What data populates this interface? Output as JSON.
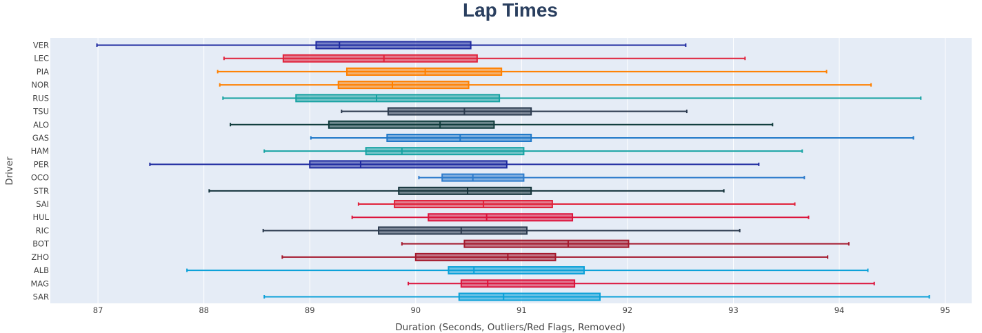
{
  "chart_data": {
    "type": "box",
    "title": "Lap Times",
    "xlabel": "Duration (Seconds, Outliers/Red Flags, Removed)",
    "ylabel": "Driver",
    "xlim": [
      86.55,
      95.25
    ],
    "x_ticks": [
      "87",
      "88",
      "89",
      "90",
      "91",
      "92",
      "93",
      "94",
      "95"
    ],
    "orientation": "horizontal",
    "grid": "vertical",
    "background": "#e5ecf6",
    "series": [
      {
        "name": "VER",
        "color": "#1e2aa0",
        "min": 86.99,
        "q1": 89.06,
        "median": 89.28,
        "q3": 90.52,
        "max": 92.55
      },
      {
        "name": "LEC",
        "color": "#e0223b",
        "min": 88.19,
        "q1": 88.75,
        "median": 89.7,
        "q3": 90.58,
        "max": 93.11
      },
      {
        "name": "PIA",
        "color": "#ff8000",
        "min": 88.13,
        "q1": 89.35,
        "median": 90.09,
        "q3": 90.81,
        "max": 93.88
      },
      {
        "name": "NOR",
        "color": "#ff8000",
        "min": 88.15,
        "q1": 89.27,
        "median": 89.78,
        "q3": 90.5,
        "max": 94.3
      },
      {
        "name": "RUS",
        "color": "#17a2a2",
        "min": 88.18,
        "q1": 88.87,
        "median": 89.63,
        "q3": 90.79,
        "max": 94.77
      },
      {
        "name": "TSU",
        "color": "#2b3a4e",
        "min": 89.3,
        "q1": 89.74,
        "median": 90.46,
        "q3": 91.09,
        "max": 92.56
      },
      {
        "name": "ALO",
        "color": "#0f3b3b",
        "min": 88.25,
        "q1": 89.18,
        "median": 90.23,
        "q3": 90.74,
        "max": 93.37
      },
      {
        "name": "GAS",
        "color": "#1f78c8",
        "min": 89.01,
        "q1": 89.73,
        "median": 90.42,
        "q3": 91.09,
        "max": 94.7
      },
      {
        "name": "HAM",
        "color": "#16a3a3",
        "min": 88.57,
        "q1": 89.53,
        "median": 89.87,
        "q3": 91.02,
        "max": 93.65
      },
      {
        "name": "PER",
        "color": "#1e2aa0",
        "min": 87.49,
        "q1": 89.0,
        "median": 89.48,
        "q3": 90.86,
        "max": 93.24
      },
      {
        "name": "OCO",
        "color": "#2e7ccc",
        "min": 90.03,
        "q1": 90.25,
        "median": 90.54,
        "q3": 91.02,
        "max": 93.67
      },
      {
        "name": "STR",
        "color": "#14333b",
        "min": 88.05,
        "q1": 89.84,
        "median": 90.49,
        "q3": 91.09,
        "max": 92.91
      },
      {
        "name": "SAI",
        "color": "#e0223b",
        "min": 89.46,
        "q1": 89.8,
        "median": 90.64,
        "q3": 91.29,
        "max": 93.58
      },
      {
        "name": "HUL",
        "color": "#dc143c",
        "min": 89.4,
        "q1": 90.12,
        "median": 90.67,
        "q3": 91.48,
        "max": 93.71
      },
      {
        "name": "RIC",
        "color": "#2b3a4e",
        "min": 88.56,
        "q1": 89.65,
        "median": 90.43,
        "q3": 91.05,
        "max": 93.06
      },
      {
        "name": "BOT",
        "color": "#a4182c",
        "min": 89.87,
        "q1": 90.46,
        "median": 91.44,
        "q3": 92.01,
        "max": 94.09
      },
      {
        "name": "ZHO",
        "color": "#a4182c",
        "min": 88.74,
        "q1": 90.0,
        "median": 90.87,
        "q3": 91.32,
        "max": 93.89
      },
      {
        "name": "ALB",
        "color": "#0aa0d8",
        "min": 87.84,
        "q1": 90.31,
        "median": 90.55,
        "q3": 91.59,
        "max": 94.27
      },
      {
        "name": "MAG",
        "color": "#dc143c",
        "min": 89.93,
        "q1": 90.43,
        "median": 90.68,
        "q3": 91.5,
        "max": 94.33
      },
      {
        "name": "SAR",
        "color": "#0aa0d8",
        "min": 88.57,
        "q1": 90.41,
        "median": 90.83,
        "q3": 91.74,
        "max": 94.85
      }
    ]
  }
}
